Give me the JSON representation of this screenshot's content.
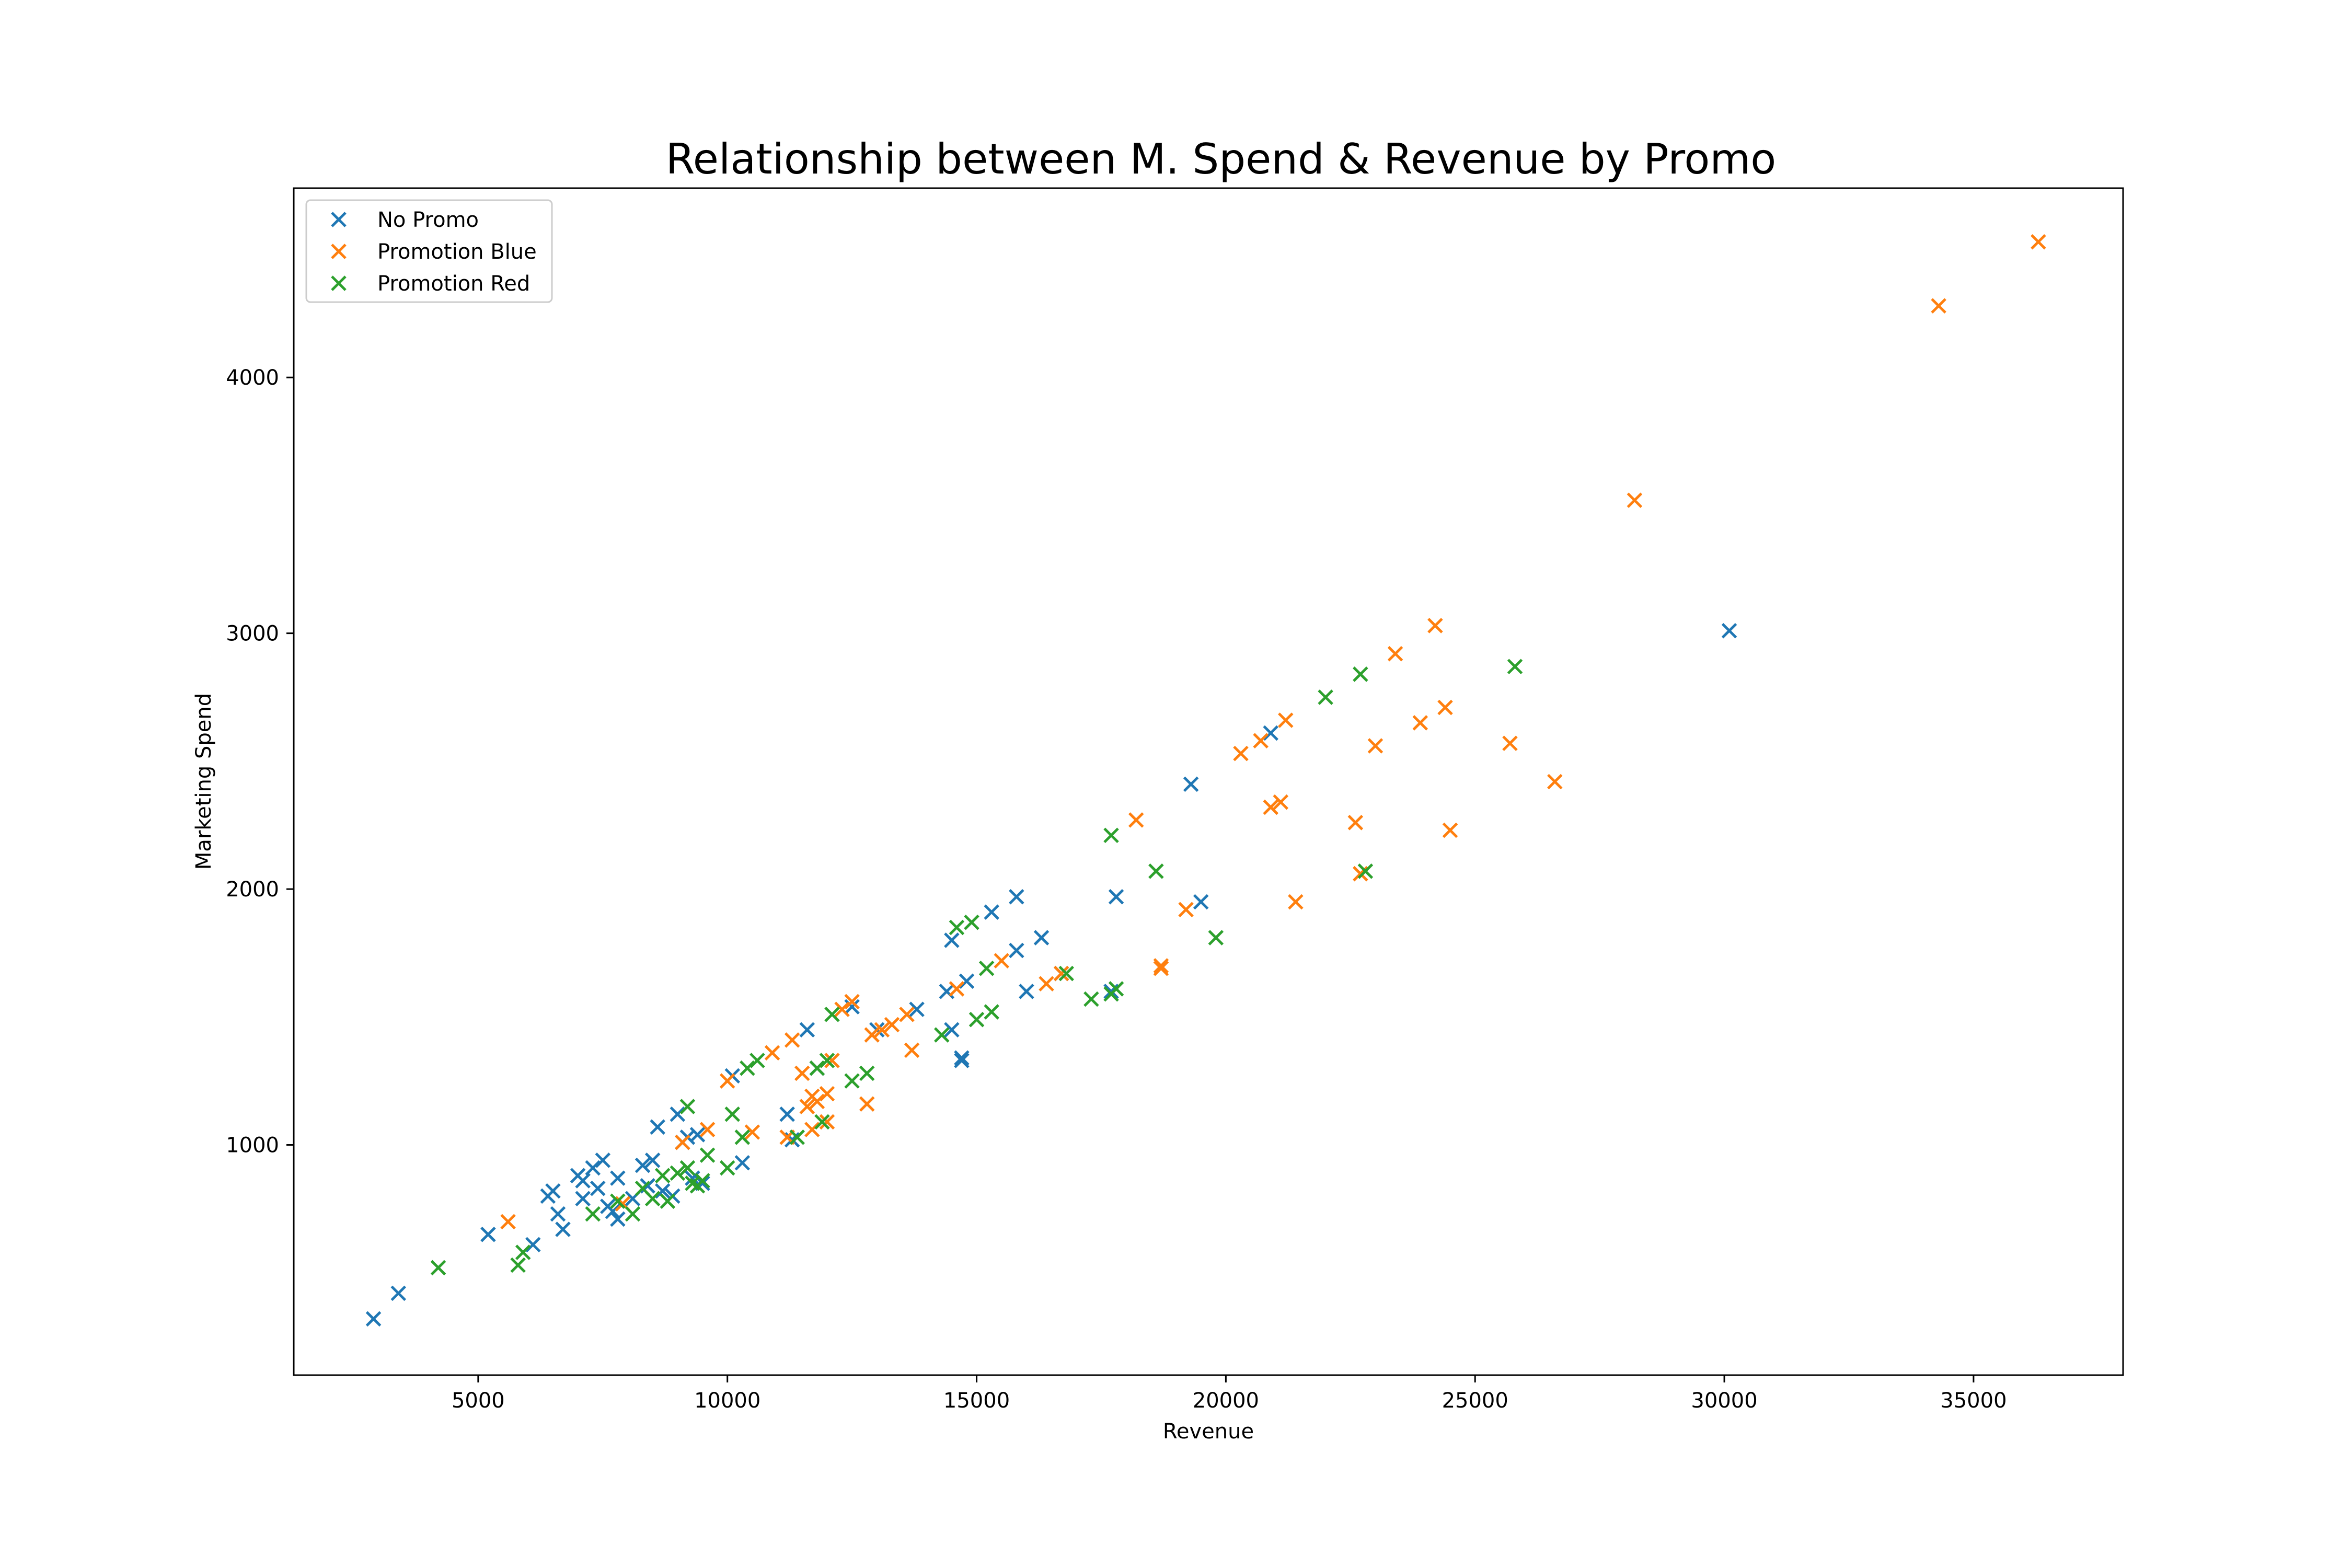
{
  "chart_data": {
    "type": "scatter",
    "title": "Relationship between M. Spend & Revenue by Promo",
    "xlabel": "Revenue",
    "ylabel": "Marketing Spend",
    "xlim": [
      1300,
      38000
    ],
    "ylim": [
      100,
      4740
    ],
    "xticks": [
      5000,
      10000,
      15000,
      20000,
      25000,
      30000,
      35000
    ],
    "yticks": [
      1000,
      2000,
      3000,
      4000
    ],
    "grid": false,
    "legend_position": "top-left",
    "marker": "x",
    "series": [
      {
        "name": "No Promo",
        "color": "#1f77b4",
        "points": [
          [
            2900,
            320
          ],
          [
            3400,
            420
          ],
          [
            5200,
            650
          ],
          [
            6100,
            610
          ],
          [
            6400,
            800
          ],
          [
            6500,
            820
          ],
          [
            6600,
            730
          ],
          [
            6700,
            670
          ],
          [
            7000,
            880
          ],
          [
            7100,
            790
          ],
          [
            7100,
            860
          ],
          [
            7300,
            910
          ],
          [
            7400,
            830
          ],
          [
            7500,
            940
          ],
          [
            7600,
            760
          ],
          [
            7700,
            740
          ],
          [
            7800,
            870
          ],
          [
            7800,
            710
          ],
          [
            8100,
            790
          ],
          [
            8300,
            920
          ],
          [
            8400,
            840
          ],
          [
            8500,
            940
          ],
          [
            8600,
            1070
          ],
          [
            8700,
            820
          ],
          [
            8900,
            800
          ],
          [
            9000,
            1120
          ],
          [
            9100,
            1010
          ],
          [
            9200,
            1030
          ],
          [
            9300,
            870
          ],
          [
            9400,
            1040
          ],
          [
            9500,
            850
          ],
          [
            10100,
            1270
          ],
          [
            10300,
            930
          ],
          [
            11200,
            1120
          ],
          [
            11300,
            1020
          ],
          [
            11600,
            1450
          ],
          [
            11800,
            1300
          ],
          [
            12500,
            1540
          ],
          [
            13000,
            1450
          ],
          [
            13800,
            1530
          ],
          [
            14400,
            1600
          ],
          [
            14500,
            1800
          ],
          [
            14500,
            1450
          ],
          [
            14700,
            1340
          ],
          [
            14700,
            1330
          ],
          [
            14800,
            1640
          ],
          [
            15300,
            1910
          ],
          [
            15800,
            1970
          ],
          [
            15800,
            1760
          ],
          [
            16000,
            1600
          ],
          [
            16300,
            1810
          ],
          [
            16700,
            1670
          ],
          [
            17700,
            1600
          ],
          [
            17800,
            1970
          ],
          [
            19300,
            2410
          ],
          [
            19500,
            1950
          ],
          [
            20900,
            2610
          ],
          [
            30100,
            3010
          ]
        ]
      },
      {
        "name": "Promotion Blue",
        "color": "#ff7f0e",
        "points": [
          [
            5600,
            700
          ],
          [
            7900,
            770
          ],
          [
            9100,
            1010
          ],
          [
            9600,
            1060
          ],
          [
            10000,
            1250
          ],
          [
            10500,
            1050
          ],
          [
            10900,
            1360
          ],
          [
            11200,
            1030
          ],
          [
            11300,
            1410
          ],
          [
            11500,
            1280
          ],
          [
            11600,
            1150
          ],
          [
            11700,
            1060
          ],
          [
            11700,
            1190
          ],
          [
            11800,
            1170
          ],
          [
            12000,
            1090
          ],
          [
            12000,
            1200
          ],
          [
            12100,
            1330
          ],
          [
            12300,
            1530
          ],
          [
            12500,
            1560
          ],
          [
            12800,
            1160
          ],
          [
            12900,
            1430
          ],
          [
            13100,
            1450
          ],
          [
            13300,
            1470
          ],
          [
            13600,
            1510
          ],
          [
            13700,
            1370
          ],
          [
            14600,
            1610
          ],
          [
            15500,
            1720
          ],
          [
            16400,
            1630
          ],
          [
            16700,
            1670
          ],
          [
            18700,
            1700
          ],
          [
            18700,
            1690
          ],
          [
            18200,
            2270
          ],
          [
            19200,
            1920
          ],
          [
            20300,
            2530
          ],
          [
            20700,
            2580
          ],
          [
            20900,
            2320
          ],
          [
            21100,
            2340
          ],
          [
            21200,
            2660
          ],
          [
            21400,
            1950
          ],
          [
            22600,
            2260
          ],
          [
            22700,
            2060
          ],
          [
            23000,
            2560
          ],
          [
            23400,
            2920
          ],
          [
            23900,
            2650
          ],
          [
            24200,
            3030
          ],
          [
            24400,
            2710
          ],
          [
            24500,
            2230
          ],
          [
            25700,
            2570
          ],
          [
            26600,
            2420
          ],
          [
            28200,
            3520
          ],
          [
            34300,
            4280
          ],
          [
            36300,
            4530
          ]
        ]
      },
      {
        "name": "Promotion Red",
        "color": "#2ca02c",
        "points": [
          [
            4200,
            520
          ],
          [
            5800,
            530
          ],
          [
            5900,
            580
          ],
          [
            7300,
            730
          ],
          [
            7800,
            780
          ],
          [
            8100,
            730
          ],
          [
            8300,
            830
          ],
          [
            8500,
            790
          ],
          [
            8700,
            880
          ],
          [
            8800,
            780
          ],
          [
            9000,
            890
          ],
          [
            9200,
            1150
          ],
          [
            9200,
            910
          ],
          [
            9300,
            850
          ],
          [
            9400,
            840
          ],
          [
            9500,
            860
          ],
          [
            9600,
            960
          ],
          [
            10000,
            910
          ],
          [
            10100,
            1120
          ],
          [
            10300,
            1030
          ],
          [
            10400,
            1300
          ],
          [
            10600,
            1330
          ],
          [
            11400,
            1030
          ],
          [
            11800,
            1300
          ],
          [
            11900,
            1090
          ],
          [
            12000,
            1330
          ],
          [
            12100,
            1510
          ],
          [
            12500,
            1250
          ],
          [
            12800,
            1280
          ],
          [
            14300,
            1430
          ],
          [
            14600,
            1850
          ],
          [
            14900,
            1870
          ],
          [
            15000,
            1490
          ],
          [
            15200,
            1690
          ],
          [
            15300,
            1520
          ],
          [
            16800,
            1670
          ],
          [
            17300,
            1570
          ],
          [
            17700,
            1590
          ],
          [
            17800,
            1610
          ],
          [
            17700,
            2210
          ],
          [
            18600,
            2070
          ],
          [
            19800,
            1810
          ],
          [
            22000,
            2750
          ],
          [
            22700,
            2840
          ],
          [
            22800,
            2070
          ],
          [
            25800,
            2870
          ]
        ]
      }
    ]
  }
}
